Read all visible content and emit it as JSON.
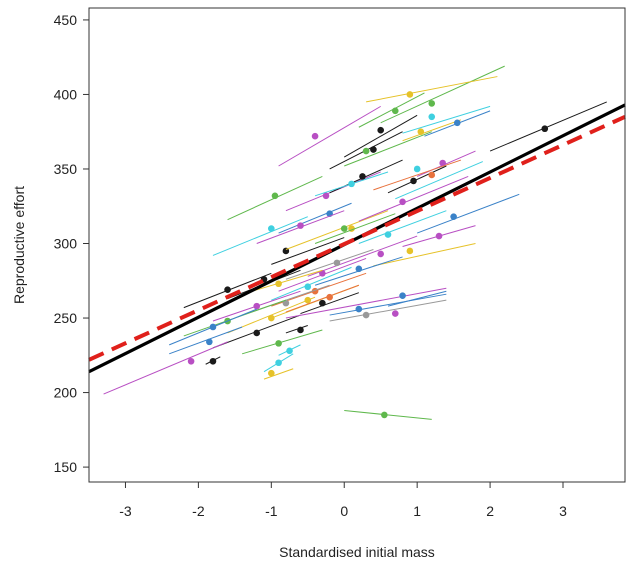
{
  "chart_data": {
    "type": "scatter",
    "title": "",
    "xlabel": "Standardised initial mass",
    "ylabel": "Reproductive effort",
    "xlim": [
      -3.5,
      3.85
    ],
    "ylim": [
      140,
      458
    ],
    "xticks": [
      -3,
      -2,
      -1,
      0,
      1,
      2,
      3
    ],
    "yticks": [
      150,
      200,
      250,
      300,
      350,
      400,
      450
    ],
    "grid": false,
    "legend": "none",
    "trend_lines": [
      {
        "style": "solid",
        "color": "#000000",
        "x": [
          -3.5,
          3.85
        ],
        "y": [
          214,
          393
        ]
      },
      {
        "style": "dashed",
        "color": "#e0201b",
        "x": [
          -3.5,
          3.85
        ],
        "y": [
          222,
          385
        ]
      }
    ],
    "individual_lines": [
      {
        "color": "#b84fc3",
        "x": [
          -0.9,
          0.5
        ],
        "y": [
          352,
          392
        ],
        "point": [
          -0.4,
          372
        ]
      },
      {
        "color": "#5fb84c",
        "x": [
          0.2,
          1.1
        ],
        "y": [
          378,
          401
        ],
        "point": [
          0.7,
          389
        ]
      },
      {
        "color": "#5fb84c",
        "x": [
          0.5,
          2.2
        ],
        "y": [
          381,
          419
        ],
        "point": [
          1.2,
          394
        ]
      },
      {
        "color": "#1a1a1a",
        "x": [
          0.0,
          1.0
        ],
        "y": [
          358,
          386
        ],
        "point": [
          0.5,
          376
        ]
      },
      {
        "color": "#1a1a1a",
        "x": [
          2.0,
          3.6
        ],
        "y": [
          362,
          395
        ],
        "point": [
          2.75,
          377
        ]
      },
      {
        "color": "#e6c229",
        "x": [
          0.8,
          1.6
        ],
        "y": [
          369,
          383
        ],
        "point": [
          1.05,
          375
        ]
      },
      {
        "color": "#3fd0e0",
        "x": [
          0.8,
          2.0
        ],
        "y": [
          374,
          392
        ],
        "point": [
          1.2,
          385
        ]
      },
      {
        "color": "#3a82c8",
        "x": [
          1.1,
          2.0
        ],
        "y": [
          372,
          389
        ],
        "point": [
          1.55,
          381
        ]
      },
      {
        "color": "#5fb84c",
        "x": [
          -1.6,
          -0.3
        ],
        "y": [
          316,
          345
        ],
        "point": [
          -0.95,
          332
        ]
      },
      {
        "color": "#1a1a1a",
        "x": [
          -0.2,
          0.8
        ],
        "y": [
          350,
          375
        ],
        "point": [
          0.4,
          363
        ]
      },
      {
        "color": "#5fb84c",
        "x": [
          0.0,
          1.2
        ],
        "y": [
          352,
          375
        ],
        "point": [
          0.3,
          362
        ]
      },
      {
        "color": "#b84fc3",
        "x": [
          -0.8,
          0.5
        ],
        "y": [
          322,
          348
        ],
        "point": [
          -0.25,
          332
        ]
      },
      {
        "color": "#1a1a1a",
        "x": [
          -0.2,
          0.8
        ],
        "y": [
          334,
          356
        ],
        "point": [
          0.25,
          345
        ]
      },
      {
        "color": "#3fd0e0",
        "x": [
          0.7,
          1.9
        ],
        "y": [
          330,
          355
        ],
        "point": [
          1.0,
          350
        ]
      },
      {
        "color": "#b84fc3",
        "x": [
          1.0,
          1.8
        ],
        "y": [
          345,
          362
        ],
        "point": [
          1.35,
          354
        ]
      },
      {
        "color": "#1a1a1a",
        "x": [
          0.6,
          1.4
        ],
        "y": [
          334,
          352
        ],
        "point": [
          0.95,
          342
        ]
      },
      {
        "color": "#3a82c8",
        "x": [
          -0.9,
          0.1
        ],
        "y": [
          307,
          327
        ],
        "point": [
          -0.2,
          320
        ]
      },
      {
        "color": "#3fd0e0",
        "x": [
          -1.8,
          -0.5
        ],
        "y": [
          292,
          318
        ],
        "point": [
          -1.0,
          310
        ]
      },
      {
        "color": "#b84fc3",
        "x": [
          -1.2,
          0.0
        ],
        "y": [
          300,
          322
        ],
        "point": [
          -0.6,
          312
        ]
      },
      {
        "color": "#1a1a1a",
        "x": [
          -1.0,
          0.0
        ],
        "y": [
          286,
          304
        ],
        "point": [
          -0.8,
          295
        ]
      },
      {
        "color": "#e6c229",
        "x": [
          -0.8,
          0.6
        ],
        "y": [
          296,
          322
        ],
        "point": [
          0.1,
          310
        ]
      },
      {
        "color": "#5fb84c",
        "x": [
          -0.4,
          0.7
        ],
        "y": [
          300,
          320
        ],
        "point": [
          0.0,
          310
        ]
      },
      {
        "color": "#b84fc3",
        "x": [
          0.2,
          1.7
        ],
        "y": [
          315,
          345
        ],
        "point": [
          0.8,
          328
        ]
      },
      {
        "color": "#3a82c8",
        "x": [
          1.0,
          2.4
        ],
        "y": [
          307,
          333
        ],
        "point": [
          1.5,
          318
        ]
      },
      {
        "color": "#3fd0e0",
        "x": [
          0.2,
          1.4
        ],
        "y": [
          300,
          322
        ],
        "point": [
          0.6,
          306
        ]
      },
      {
        "color": "#e6c229",
        "x": [
          0.4,
          1.8
        ],
        "y": [
          285,
          300
        ],
        "point": [
          0.9,
          295
        ]
      },
      {
        "color": "#b84fc3",
        "x": [
          0.8,
          1.8
        ],
        "y": [
          298,
          312
        ],
        "point": [
          1.3,
          305
        ]
      },
      {
        "color": "#b84fc3",
        "x": [
          -0.5,
          1.0
        ],
        "y": [
          278,
          305
        ],
        "point": [
          0.5,
          293
        ]
      },
      {
        "color": "#1a1a1a",
        "x": [
          -1.6,
          -0.6
        ],
        "y": [
          263,
          282
        ],
        "point": [
          -1.1,
          276
        ]
      },
      {
        "color": "#1a1a1a",
        "x": [
          -2.2,
          -1.0
        ],
        "y": [
          257,
          280
        ],
        "point": [
          -1.6,
          269
        ]
      },
      {
        "color": "#3a82c8",
        "x": [
          -0.4,
          0.8
        ],
        "y": [
          272,
          291
        ],
        "point": [
          0.2,
          283
        ]
      },
      {
        "color": "#999999",
        "x": [
          -0.8,
          0.4
        ],
        "y": [
          276,
          296
        ],
        "point": [
          -0.1,
          287
        ]
      },
      {
        "color": "#b84fc3",
        "x": [
          -0.9,
          0.3
        ],
        "y": [
          268,
          290
        ],
        "point": [
          -0.3,
          280
        ]
      },
      {
        "color": "#3fd0e0",
        "x": [
          -1.0,
          0.1
        ],
        "y": [
          262,
          284
        ],
        "point": [
          -0.5,
          271
        ]
      },
      {
        "color": "#e6c229",
        "x": [
          -1.4,
          -0.3
        ],
        "y": [
          266,
          282
        ],
        "point": [
          -0.9,
          273
        ]
      },
      {
        "color": "#e8723d",
        "x": [
          -1.0,
          0.3
        ],
        "y": [
          258,
          280
        ],
        "point": [
          -0.4,
          268
        ]
      },
      {
        "color": "#999999",
        "x": [
          -1.4,
          -0.2
        ],
        "y": [
          252,
          272
        ],
        "point": [
          -0.8,
          260
        ]
      },
      {
        "color": "#e6c229",
        "x": [
          -1.0,
          0.2
        ],
        "y": [
          250,
          272
        ],
        "point": [
          -0.5,
          262
        ]
      },
      {
        "color": "#b84fc3",
        "x": [
          -1.8,
          -0.6
        ],
        "y": [
          248,
          268
        ],
        "point": [
          -1.2,
          258
        ]
      },
      {
        "color": "#e8723d",
        "x": [
          -0.8,
          0.2
        ],
        "y": [
          254,
          272
        ],
        "point": [
          -0.2,
          264
        ]
      },
      {
        "color": "#1a1a1a",
        "x": [
          -0.6,
          0.2
        ],
        "y": [
          253,
          267
        ],
        "point": [
          -0.3,
          260
        ]
      },
      {
        "color": "#5fb84c",
        "x": [
          -2.2,
          -0.8
        ],
        "y": [
          238,
          262
        ],
        "point": [
          -1.6,
          248
        ]
      },
      {
        "color": "#3a82c8",
        "x": [
          -2.4,
          -1.2
        ],
        "y": [
          232,
          256
        ],
        "point": [
          -1.8,
          244
        ]
      },
      {
        "color": "#e6c229",
        "x": [
          -1.6,
          -0.4
        ],
        "y": [
          240,
          264
        ],
        "point": [
          -1.0,
          250
        ]
      },
      {
        "color": "#1a1a1a",
        "x": [
          -1.8,
          -0.6
        ],
        "y": [
          230,
          252
        ],
        "point": [
          -1.2,
          240
        ]
      },
      {
        "color": "#b84fc3",
        "x": [
          -0.8,
          1.4
        ],
        "y": [
          250,
          270
        ],
        "point": [
          0.7,
          253
        ]
      },
      {
        "color": "#3a82c8",
        "x": [
          -0.2,
          1.4
        ],
        "y": [
          252,
          266
        ],
        "point": [
          0.2,
          256
        ]
      },
      {
        "color": "#999999",
        "x": [
          -0.2,
          1.4
        ],
        "y": [
          248,
          262
        ],
        "point": [
          0.3,
          252
        ]
      },
      {
        "color": "#3a82c8",
        "x": [
          0.6,
          1.4
        ],
        "y": [
          258,
          268
        ],
        "point": [
          0.8,
          265
        ]
      },
      {
        "color": "#b84fc3",
        "x": [
          -3.3,
          -1.6
        ],
        "y": [
          199,
          234
        ],
        "point": [
          -2.1,
          221
        ]
      },
      {
        "color": "#3a82c8",
        "x": [
          -2.4,
          -1.4
        ],
        "y": [
          226,
          244
        ],
        "point": [
          -1.85,
          234
        ]
      },
      {
        "color": "#1a1a1a",
        "x": [
          -1.9,
          -1.7
        ],
        "y": [
          219,
          224
        ],
        "point": [
          -1.8,
          221
        ]
      },
      {
        "color": "#5fb84c",
        "x": [
          -1.4,
          -0.3
        ],
        "y": [
          226,
          242
        ],
        "point": [
          -0.9,
          233
        ]
      },
      {
        "color": "#3fd0e0",
        "x": [
          -1.1,
          -0.7
        ],
        "y": [
          214,
          226
        ],
        "point": [
          -0.9,
          220
        ]
      },
      {
        "color": "#e6c229",
        "x": [
          -1.1,
          -0.7
        ],
        "y": [
          209,
          216
        ],
        "point": [
          -1.0,
          213
        ]
      },
      {
        "color": "#3fd0e0",
        "x": [
          -0.9,
          -0.6
        ],
        "y": [
          225,
          232
        ],
        "point": [
          -0.75,
          228
        ]
      },
      {
        "color": "#1a1a1a",
        "x": [
          -0.8,
          -0.5
        ],
        "y": [
          240,
          245
        ],
        "point": [
          -0.6,
          242
        ]
      },
      {
        "color": "#5fb84c",
        "x": [
          0.0,
          1.2
        ],
        "y": [
          188,
          182
        ],
        "point": [
          0.55,
          185
        ]
      },
      {
        "color": "#e6c229",
        "x": [
          0.3,
          2.1
        ],
        "y": [
          395,
          412
        ],
        "point": [
          0.9,
          400
        ]
      },
      {
        "color": "#3fd0e0",
        "x": [
          -0.4,
          0.6
        ],
        "y": [
          332,
          348
        ],
        "point": [
          0.1,
          340
        ]
      },
      {
        "color": "#e8723d",
        "x": [
          0.4,
          1.6
        ],
        "y": [
          336,
          356
        ],
        "point": [
          1.2,
          346
        ]
      }
    ]
  }
}
